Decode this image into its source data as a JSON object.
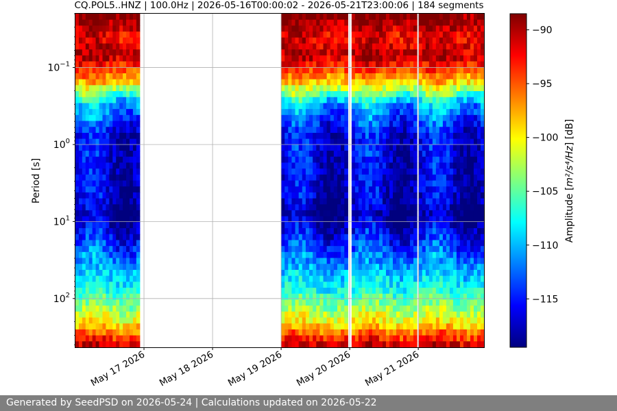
{
  "footer": "Generated by SeedPSD on 2026-05-24 | Calculations updated on 2026-05-22",
  "chart_data": {
    "type": "heatmap",
    "title": "CQ.POL5..HNZ | 100.0Hz | 2026-05-16T00:00:02 - 2026-05-21T23:00:06 | 184 segments",
    "xlabel": "",
    "ylabel": "Period [s]",
    "y_scale": "log",
    "y_inverted": true,
    "grid": true,
    "xlim": [
      "2026-05-16T00:00:02",
      "2026-05-21T23:00:06"
    ],
    "ylim": [
      0.02,
      430
    ],
    "x_ticks": [
      {
        "value": "2026-05-17",
        "label": "May 17 2026"
      },
      {
        "value": "2026-05-18",
        "label": "May 18 2026"
      },
      {
        "value": "2026-05-19",
        "label": "May 19 2026"
      },
      {
        "value": "2026-05-20",
        "label": "May 20 2026"
      },
      {
        "value": "2026-05-21",
        "label": "May 21 2026"
      }
    ],
    "y_ticks": [
      {
        "value": 0.1,
        "base": "10",
        "exp": "−1"
      },
      {
        "value": 1,
        "base": "10",
        "exp": "0"
      },
      {
        "value": 10,
        "base": "10",
        "exp": "1"
      },
      {
        "value": 100,
        "base": "10",
        "exp": "2"
      }
    ],
    "colorbar": {
      "label_prefix": "Amplitude [",
      "label_units": "m²/s⁴/Hz",
      "label_suffix": "] [dB]",
      "range": [
        -119.5,
        -88.5
      ],
      "colormap": [
        "#00007f",
        "#0000ff",
        "#007fff",
        "#00ffff",
        "#7fff7f",
        "#ffff00",
        "#ff7f00",
        "#ff0000",
        "#7f0000"
      ],
      "ticks": [
        -90,
        -95,
        -100,
        -105,
        -110,
        -115
      ],
      "tick_labels": [
        "−90",
        "−95",
        "−100",
        "−105",
        "−110",
        "−115"
      ]
    },
    "data_segments": [
      {
        "start": "2026-05-16T00:00:02",
        "end": "2026-05-16T22:30:00"
      },
      {
        "start": "2026-05-19T00:00:00",
        "end": "2026-05-19T23:20:00"
      },
      {
        "start": "2026-05-20T00:40:00",
        "end": "2026-05-20T23:30:00"
      },
      {
        "start": "2026-05-21T00:10:00",
        "end": "2026-05-21T23:00:06"
      }
    ],
    "psd_profile": [
      {
        "period": 0.02,
        "db": -88
      },
      {
        "period": 0.04,
        "db": -92
      },
      {
        "period": 0.07,
        "db": -90
      },
      {
        "period": 0.15,
        "db": -98
      },
      {
        "period": 0.3,
        "db": -110
      },
      {
        "period": 0.7,
        "db": -116
      },
      {
        "period": 5,
        "db": -117
      },
      {
        "period": 8,
        "db": -119
      },
      {
        "period": 20,
        "db": -114
      },
      {
        "period": 80,
        "db": -107
      },
      {
        "period": 200,
        "db": -100
      },
      {
        "period": 430,
        "db": -90
      }
    ]
  }
}
